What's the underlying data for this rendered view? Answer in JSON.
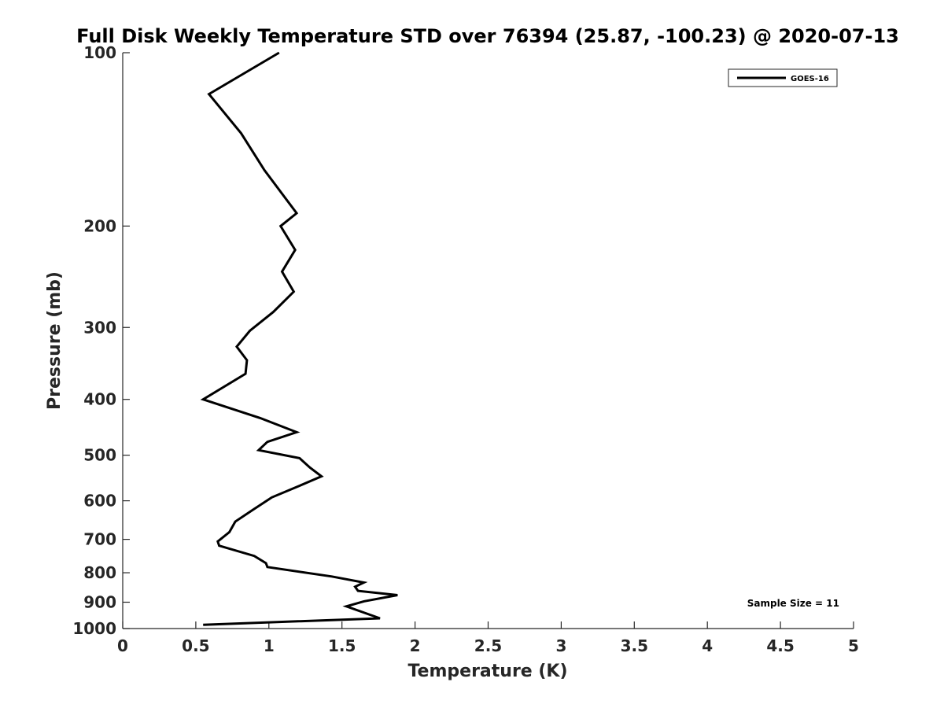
{
  "chart_data": {
    "type": "line",
    "title": "Full Disk Weekly Temperature STD over 76394 (25.87, -100.23) @ 2020-07-13",
    "xlabel": "Temperature (K)",
    "ylabel": "Pressure (mb)",
    "xlim": [
      0,
      5
    ],
    "ylim": [
      100,
      1000
    ],
    "y_scale": "log",
    "y_reversed": true,
    "grid": false,
    "x_ticks": [
      0,
      0.5,
      1,
      1.5,
      2,
      2.5,
      3,
      3.5,
      4,
      4.5,
      5
    ],
    "x_tick_labels": [
      "0",
      "0.5",
      "1",
      "1.5",
      "2",
      "2.5",
      "3",
      "3.5",
      "4",
      "4.5",
      "5"
    ],
    "y_ticks": [
      100,
      200,
      300,
      400,
      500,
      600,
      700,
      800,
      900,
      1000
    ],
    "y_tick_labels": [
      "100",
      "200",
      "300",
      "400",
      "500",
      "600",
      "700",
      "800",
      "900",
      "1000"
    ],
    "legend_position": "top-right",
    "annotation": "Sample Size = 11",
    "series": [
      {
        "name": "GOES-16",
        "color": "#000000",
        "points": [
          [
            1.07,
            100
          ],
          [
            0.59,
            118
          ],
          [
            0.81,
            138
          ],
          [
            0.97,
            160
          ],
          [
            1.19,
            190
          ],
          [
            1.08,
            200
          ],
          [
            1.18,
            220
          ],
          [
            1.09,
            240
          ],
          [
            1.17,
            260
          ],
          [
            1.03,
            282
          ],
          [
            0.87,
            304
          ],
          [
            0.78,
            324
          ],
          [
            0.85,
            342
          ],
          [
            0.84,
            361
          ],
          [
            0.55,
            400
          ],
          [
            0.94,
            431
          ],
          [
            1.19,
            456
          ],
          [
            0.99,
            474
          ],
          [
            0.93,
            490
          ],
          [
            1.21,
            506
          ],
          [
            1.28,
            525
          ],
          [
            1.36,
            544
          ],
          [
            1.21,
            565
          ],
          [
            1.02,
            592
          ],
          [
            0.89,
            622
          ],
          [
            0.77,
            652
          ],
          [
            0.73,
            680
          ],
          [
            0.65,
            706
          ],
          [
            0.66,
            718
          ],
          [
            0.9,
            748
          ],
          [
            0.98,
            770
          ],
          [
            0.99,
            782
          ],
          [
            1.43,
            812
          ],
          [
            1.65,
            832
          ],
          [
            1.59,
            846
          ],
          [
            1.61,
            860
          ],
          [
            1.88,
            875
          ],
          [
            1.65,
            897
          ],
          [
            1.53,
            915
          ],
          [
            1.76,
            960
          ],
          [
            0.55,
            985
          ]
        ]
      }
    ]
  }
}
